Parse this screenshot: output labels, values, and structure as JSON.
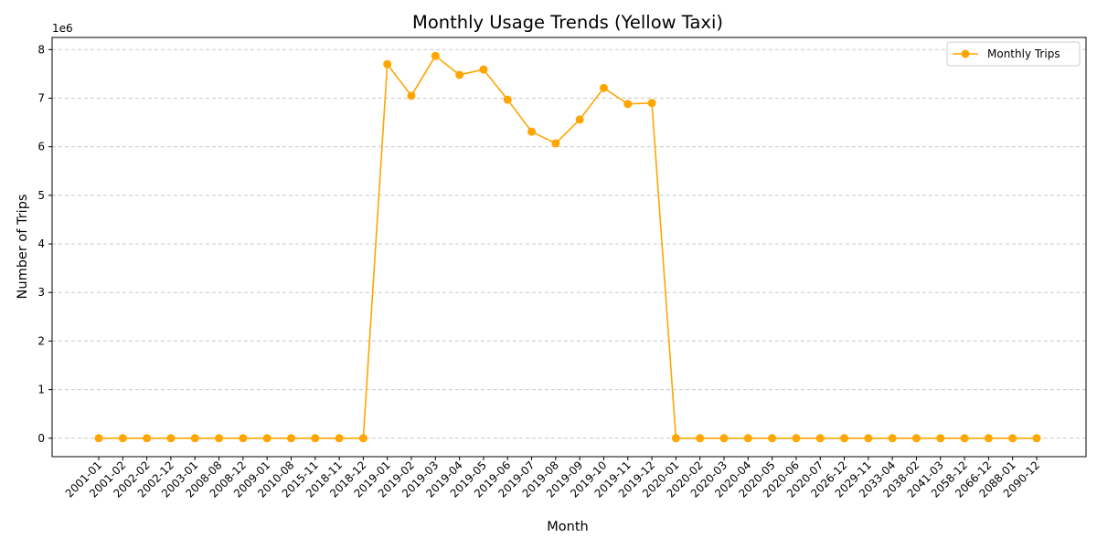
{
  "chart_data": {
    "type": "line",
    "title": "Monthly Usage Trends (Yellow Taxi)",
    "xlabel": "Month",
    "ylabel": "Number of Trips",
    "y_offset_label": "1e6",
    "y_scale_multiplier": 1000000,
    "ylim": [
      -0.38,
      8.25
    ],
    "yticks": [
      0,
      1,
      2,
      3,
      4,
      5,
      6,
      7,
      8
    ],
    "grid": "y-dashed",
    "legend_position": "top-right",
    "color": "#FFA500",
    "categories": [
      "2001-01",
      "2001-02",
      "2002-02",
      "2002-12",
      "2003-01",
      "2008-08",
      "2008-12",
      "2009-01",
      "2010-08",
      "2015-11",
      "2018-11",
      "2018-12",
      "2019-01",
      "2019-02",
      "2019-03",
      "2019-04",
      "2019-05",
      "2019-06",
      "2019-07",
      "2019-08",
      "2019-09",
      "2019-10",
      "2019-11",
      "2019-12",
      "2020-01",
      "2020-02",
      "2020-03",
      "2020-04",
      "2020-05",
      "2020-06",
      "2020-07",
      "2026-12",
      "2029-11",
      "2033-04",
      "2038-02",
      "2041-03",
      "2058-12",
      "2066-12",
      "2088-01",
      "2090-12"
    ],
    "series": [
      {
        "name": "Monthly Trips",
        "values": [
          0,
          0,
          0,
          0,
          0,
          0,
          0,
          0,
          0,
          0,
          0,
          0,
          7.7,
          7.05,
          7.87,
          7.48,
          7.59,
          6.97,
          6.31,
          6.07,
          6.56,
          7.21,
          6.88,
          6.9,
          0,
          0,
          0,
          0,
          0,
          0,
          0,
          0,
          0,
          0,
          0,
          0,
          0,
          0,
          0,
          0
        ]
      }
    ]
  }
}
